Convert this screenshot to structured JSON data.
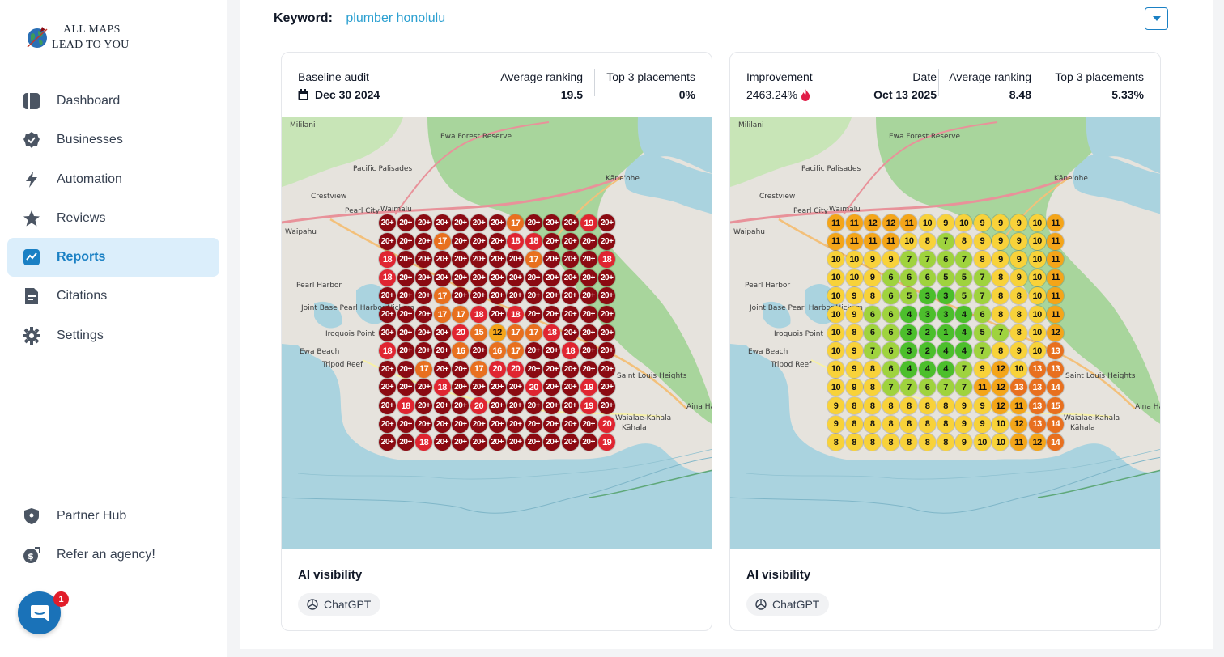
{
  "brand": {
    "line1": "ALL MAPS",
    "line2": "LEAD TO YOU"
  },
  "nav": [
    {
      "label": "Dashboard",
      "icon": "dashboard-icon",
      "active": false
    },
    {
      "label": "Businesses",
      "icon": "check-badge-icon",
      "active": false
    },
    {
      "label": "Automation",
      "icon": "bolt-icon",
      "active": false
    },
    {
      "label": "Reviews",
      "icon": "star-icon",
      "active": false
    },
    {
      "label": "Reports",
      "icon": "chart-icon",
      "active": true
    },
    {
      "label": "Citations",
      "icon": "document-icon",
      "active": false
    },
    {
      "label": "Settings",
      "icon": "gear-icon",
      "active": false
    }
  ],
  "nav_bottom": [
    {
      "label": "Partner Hub",
      "icon": "shield-icon"
    },
    {
      "label": "Refer an agency!",
      "icon": "money-icon"
    }
  ],
  "chat": {
    "badge": "1"
  },
  "keyword": {
    "label": "Keyword:",
    "value": "plumber honolulu"
  },
  "colors": {
    "accent": "#1a80c4",
    "dark_red": "#8b0a12",
    "red": "#e02531",
    "orange": "#e8701f",
    "amber": "#f4a519",
    "yellow": "#f8d23a",
    "light_green": "#9fd33e",
    "green": "#4cbf2c"
  },
  "baseline": {
    "audit_label": "Baseline audit",
    "date": "Dec 30 2024",
    "avg_label": "Average ranking",
    "avg_value": "19.5",
    "top3_label": "Top 3 placements",
    "top3_value": "0%",
    "grid": [
      [
        "20+",
        "20+",
        "20+",
        "20+",
        "20+",
        "20+",
        "20+",
        "17",
        "20+",
        "20+",
        "20+",
        "19",
        "20+"
      ],
      [
        "20+",
        "20+",
        "20+",
        "17",
        "20+",
        "20+",
        "20+",
        "18",
        "18",
        "20+",
        "20+",
        "20+",
        "20+"
      ],
      [
        "18",
        "20+",
        "20+",
        "20+",
        "20+",
        "20+",
        "20+",
        "20+",
        "17",
        "20+",
        "20+",
        "20+",
        "18"
      ],
      [
        "18",
        "20+",
        "20+",
        "20+",
        "20+",
        "20+",
        "20+",
        "20+",
        "20+",
        "20+",
        "20+",
        "20+",
        "20+"
      ],
      [
        "20+",
        "20+",
        "20+",
        "17",
        "20+",
        "20+",
        "20+",
        "20+",
        "20+",
        "20+",
        "20+",
        "20+",
        "20+"
      ],
      [
        "20+",
        "20+",
        "20+",
        "17",
        "17",
        "18",
        "20+",
        "18",
        "20+",
        "20+",
        "20+",
        "20+",
        "20+"
      ],
      [
        "20+",
        "20+",
        "20+",
        "20+",
        "20",
        "15",
        "12",
        "17",
        "17",
        "18",
        "20+",
        "20+",
        "20+"
      ],
      [
        "18",
        "20+",
        "20+",
        "20+",
        "16",
        "20+",
        "16",
        "17",
        "20+",
        "20+",
        "18",
        "20+",
        "20+"
      ],
      [
        "20+",
        "20+",
        "17",
        "20+",
        "20+",
        "17",
        "20",
        "20",
        "20+",
        "20+",
        "20+",
        "20+",
        "20+"
      ],
      [
        "20+",
        "20+",
        "20+",
        "18",
        "20+",
        "20+",
        "20+",
        "20+",
        "20",
        "20+",
        "20+",
        "19",
        "20+"
      ],
      [
        "20+",
        "18",
        "20+",
        "20+",
        "20+",
        "20",
        "20+",
        "20+",
        "20+",
        "20+",
        "20+",
        "19",
        "20+"
      ],
      [
        "20+",
        "20+",
        "20+",
        "20+",
        "20+",
        "20+",
        "20+",
        "20+",
        "20+",
        "20+",
        "20+",
        "20+",
        "20"
      ],
      [
        "20+",
        "20+",
        "18",
        "20+",
        "20+",
        "20+",
        "20+",
        "20+",
        "20+",
        "20+",
        "20+",
        "20+",
        "19"
      ]
    ]
  },
  "current": {
    "improvement_label": "Improvement",
    "improvement_value": "2463.24%",
    "date_label": "Date",
    "date": "Oct 13 2025",
    "avg_label": "Average ranking",
    "avg_value": "8.48",
    "top3_label": "Top 3 placements",
    "top3_value": "5.33%",
    "grid": [
      [
        "11",
        "11",
        "12",
        "12",
        "11",
        "10",
        "9",
        "10",
        "9",
        "9",
        "9",
        "10",
        "11"
      ],
      [
        "11",
        "11",
        "11",
        "11",
        "10",
        "8",
        "7",
        "8",
        "9",
        "9",
        "9",
        "10",
        "11"
      ],
      [
        "10",
        "10",
        "9",
        "9",
        "7",
        "7",
        "6",
        "7",
        "8",
        "9",
        "9",
        "10",
        "11"
      ],
      [
        "10",
        "10",
        "9",
        "6",
        "6",
        "6",
        "5",
        "5",
        "7",
        "8",
        "9",
        "10",
        "11"
      ],
      [
        "10",
        "9",
        "8",
        "6",
        "5",
        "3",
        "3",
        "5",
        "7",
        "8",
        "8",
        "10",
        "11"
      ],
      [
        "10",
        "9",
        "6",
        "6",
        "4",
        "3",
        "3",
        "4",
        "6",
        "8",
        "8",
        "10",
        "11"
      ],
      [
        "10",
        "8",
        "6",
        "6",
        "3",
        "2",
        "1",
        "4",
        "5",
        "7",
        "8",
        "10",
        "12"
      ],
      [
        "10",
        "9",
        "7",
        "6",
        "3",
        "2",
        "4",
        "4",
        "7",
        "8",
        "9",
        "10",
        "13"
      ],
      [
        "10",
        "9",
        "8",
        "6",
        "4",
        "4",
        "4",
        "7",
        "9",
        "12",
        "10",
        "13",
        "13"
      ],
      [
        "10",
        "9",
        "8",
        "7",
        "7",
        "6",
        "7",
        "7",
        "11",
        "12",
        "13",
        "13",
        "14"
      ],
      [
        "9",
        "8",
        "8",
        "8",
        "8",
        "8",
        "8",
        "9",
        "9",
        "12",
        "11",
        "13",
        "15"
      ],
      [
        "9",
        "8",
        "8",
        "8",
        "8",
        "8",
        "8",
        "9",
        "9",
        "10",
        "12",
        "13",
        "14"
      ],
      [
        "8",
        "8",
        "8",
        "8",
        "8",
        "8",
        "8",
        "9",
        "10",
        "10",
        "11",
        "12",
        "14"
      ]
    ]
  },
  "ai_visibility": {
    "title": "AI visibility",
    "chip": "ChatGPT"
  },
  "map_labels": [
    "Mililani",
    "Pacific Palisades",
    "Crestview",
    "Pearl City",
    "Waimalu",
    "Waipahu",
    "Pearl Harbor",
    "Joint Base Pearl Harbor-Hickam",
    "Iroquois Point",
    "Ewa Beach",
    "Tripod Reef",
    "Kāne'ohe",
    "Ewa Forest Reserve",
    "Waialae-Kahala",
    "Kāhala",
    "Saint Louis Heights",
    "Aina Haina"
  ]
}
